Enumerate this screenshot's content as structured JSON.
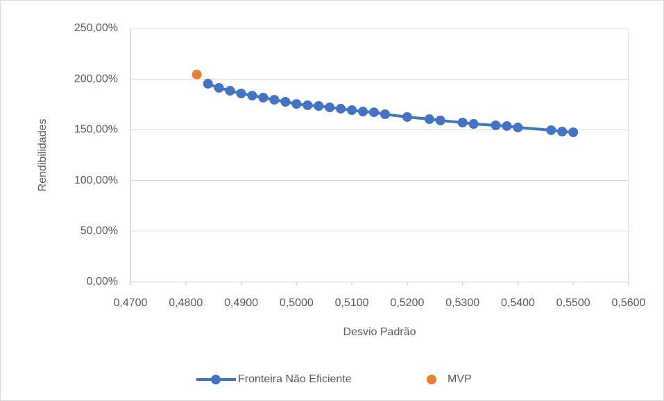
{
  "chart_data": {
    "type": "scatter",
    "xlabel": "Desvio Padrão",
    "ylabel": "Rendibilidades",
    "series": [
      {
        "name": "Fronteira Não Eficiente",
        "color": "#4472c4",
        "line": true,
        "x": [
          0.484,
          0.486,
          0.488,
          0.49,
          0.492,
          0.494,
          0.496,
          0.498,
          0.5,
          0.502,
          0.504,
          0.506,
          0.508,
          0.51,
          0.512,
          0.514,
          0.516,
          0.52,
          0.524,
          0.526,
          0.53,
          0.532,
          0.536,
          0.538,
          0.54,
          0.546,
          0.548,
          0.55
        ],
        "values": [
          195.4,
          191.3,
          188.5,
          185.8,
          183.7,
          181.7,
          179.6,
          177.6,
          175.5,
          174.2,
          173.5,
          172.1,
          170.8,
          169.4,
          168.0,
          167.3,
          165.3,
          162.6,
          160.5,
          159.2,
          157.1,
          155.7,
          154.4,
          153.7,
          152.3,
          149.6,
          148.2,
          147.5
        ]
      },
      {
        "name": "MVP",
        "color": "#ed7d31",
        "line": false,
        "x": [
          0.482
        ],
        "values": [
          204.5
        ]
      }
    ],
    "xlim": [
      0.47,
      0.56
    ],
    "xticks": [
      {
        "value": 0.47,
        "label": "0,4700"
      },
      {
        "value": 0.48,
        "label": "0,4800"
      },
      {
        "value": 0.49,
        "label": "0,4900"
      },
      {
        "value": 0.5,
        "label": "0,5000"
      },
      {
        "value": 0.51,
        "label": "0,5100"
      },
      {
        "value": 0.52,
        "label": "0,5200"
      },
      {
        "value": 0.53,
        "label": "0,5300"
      },
      {
        "value": 0.54,
        "label": "0,5400"
      },
      {
        "value": 0.55,
        "label": "0,5500"
      },
      {
        "value": 0.56,
        "label": "0,5600"
      }
    ],
    "ylim": [
      0,
      250
    ],
    "yticks": [
      {
        "value": 0,
        "label": "0,00%"
      },
      {
        "value": 50,
        "label": "50,00%"
      },
      {
        "value": 100,
        "label": "100,00%"
      },
      {
        "value": 150,
        "label": "150,00%"
      },
      {
        "value": 200,
        "label": "200,00%"
      },
      {
        "value": 250,
        "label": "250,00%"
      }
    ],
    "grid": true,
    "legend": "bottom"
  }
}
